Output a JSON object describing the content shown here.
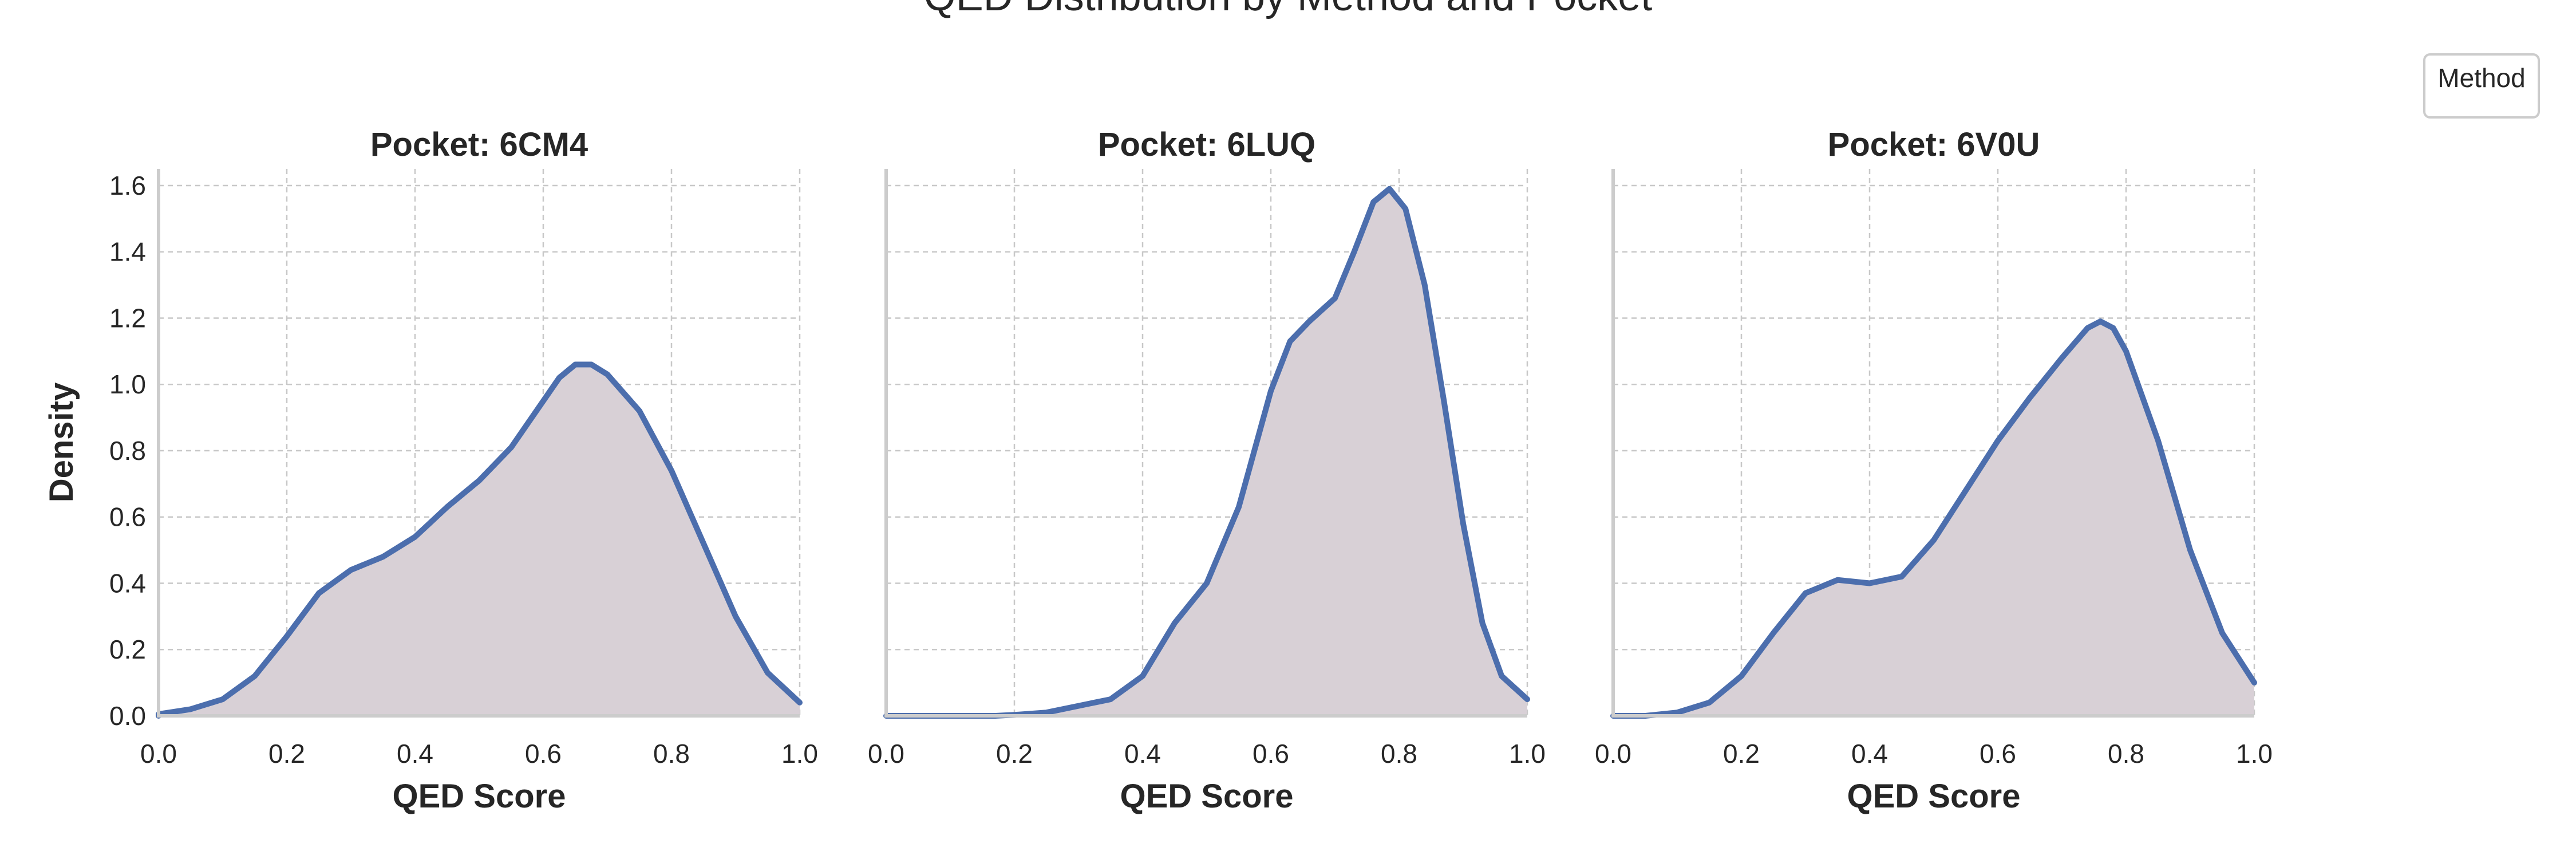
{
  "figure": {
    "title": "QED Distribution by Method and Pocket",
    "legend_title": "Method",
    "line_color": "#4c6ead",
    "fill_color": "#d8d0d6"
  },
  "chart_data": [
    {
      "type": "area",
      "title": "Pocket: 6CM4",
      "xlabel": "QED Score",
      "ylabel": "Density",
      "xlim": [
        0.0,
        1.0
      ],
      "ylim": [
        0.0,
        1.65
      ],
      "xticks": [
        "0.0",
        "0.2",
        "0.4",
        "0.6",
        "0.8",
        "1.0"
      ],
      "yticks": [
        "0.0",
        "0.2",
        "0.4",
        "0.6",
        "0.8",
        "1.0",
        "1.2",
        "1.4",
        "1.6"
      ],
      "grid": true,
      "x": [
        0.0,
        0.05,
        0.1,
        0.15,
        0.2,
        0.25,
        0.3,
        0.35,
        0.4,
        0.45,
        0.5,
        0.55,
        0.6,
        0.625,
        0.65,
        0.675,
        0.7,
        0.75,
        0.8,
        0.85,
        0.9,
        0.95,
        1.0
      ],
      "y": [
        0.005,
        0.02,
        0.05,
        0.12,
        0.24,
        0.37,
        0.44,
        0.48,
        0.54,
        0.63,
        0.71,
        0.81,
        0.95,
        1.02,
        1.06,
        1.06,
        1.03,
        0.92,
        0.74,
        0.52,
        0.3,
        0.13,
        0.04
      ]
    },
    {
      "type": "area",
      "title": "Pocket: 6LUQ",
      "xlabel": "QED Score",
      "ylabel": "",
      "xlim": [
        0.0,
        1.0
      ],
      "ylim": [
        0.0,
        1.65
      ],
      "xticks": [
        "0.0",
        "0.2",
        "0.4",
        "0.6",
        "0.8",
        "1.0"
      ],
      "yticks": [],
      "grid": true,
      "x": [
        0.17,
        0.2,
        0.25,
        0.3,
        0.35,
        0.4,
        0.45,
        0.5,
        0.55,
        0.6,
        0.63,
        0.66,
        0.7,
        0.73,
        0.76,
        0.785,
        0.81,
        0.84,
        0.87,
        0.9,
        0.93,
        0.96,
        1.0
      ],
      "y": [
        0.0,
        0.003,
        0.01,
        0.03,
        0.05,
        0.12,
        0.28,
        0.4,
        0.63,
        0.98,
        1.13,
        1.19,
        1.26,
        1.4,
        1.55,
        1.59,
        1.53,
        1.3,
        0.95,
        0.58,
        0.28,
        0.12,
        0.05
      ]
    },
    {
      "type": "area",
      "title": "Pocket: 6V0U",
      "xlabel": "QED Score",
      "ylabel": "",
      "xlim": [
        0.0,
        1.0
      ],
      "ylim": [
        0.0,
        1.65
      ],
      "xticks": [
        "0.0",
        "0.2",
        "0.4",
        "0.6",
        "0.8",
        "1.0"
      ],
      "yticks": [],
      "grid": true,
      "x": [
        0.05,
        0.1,
        0.15,
        0.2,
        0.25,
        0.3,
        0.35,
        0.4,
        0.45,
        0.5,
        0.55,
        0.6,
        0.65,
        0.7,
        0.74,
        0.76,
        0.78,
        0.8,
        0.85,
        0.9,
        0.95,
        1.0
      ],
      "y": [
        0.0,
        0.01,
        0.04,
        0.12,
        0.25,
        0.37,
        0.41,
        0.4,
        0.42,
        0.53,
        0.68,
        0.83,
        0.96,
        1.08,
        1.17,
        1.19,
        1.17,
        1.1,
        0.83,
        0.5,
        0.25,
        0.1
      ]
    }
  ]
}
